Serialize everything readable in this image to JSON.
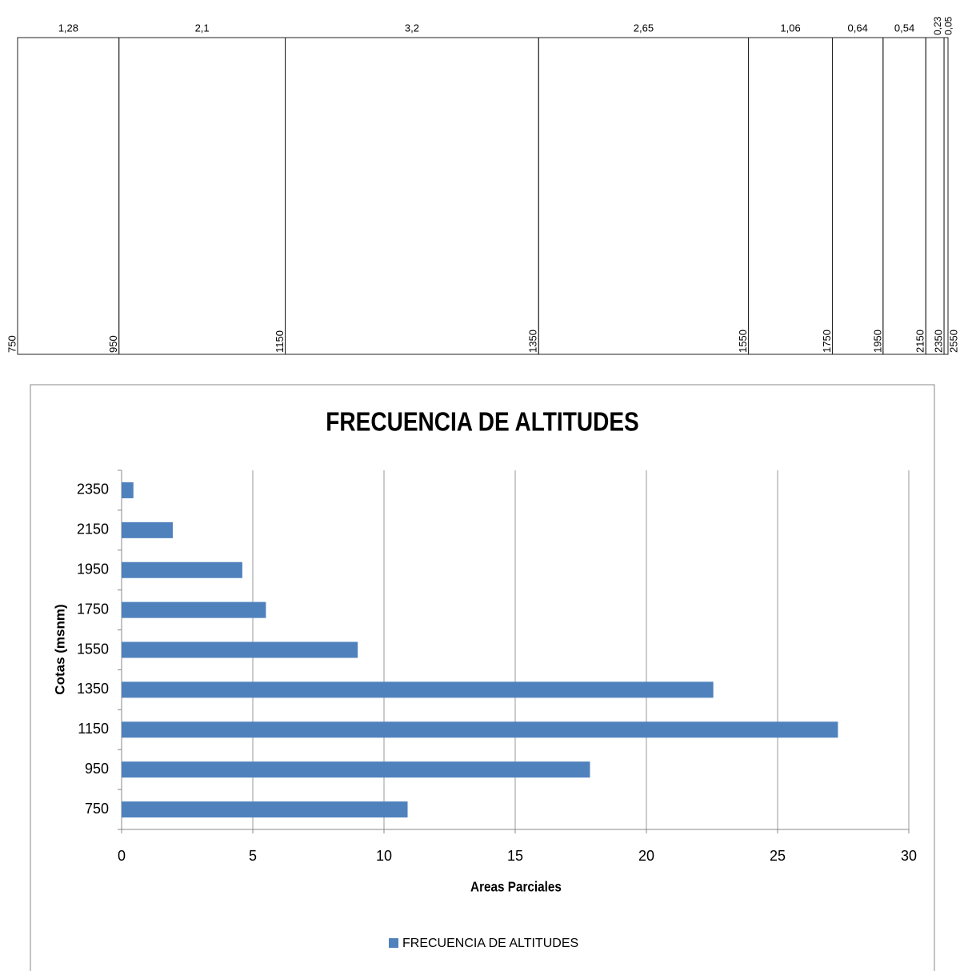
{
  "chart_data": [
    {
      "type": "strip",
      "values": [
        1.28,
        2.1,
        3.2,
        2.65,
        1.06,
        0.64,
        0.54,
        0.23,
        0.05
      ],
      "value_labels": [
        "1,28",
        "2,1",
        "3,2",
        "2,65",
        "1,06",
        "0,64",
        "0,54",
        "0,23",
        "0,05"
      ],
      "boundaries": [
        750,
        950,
        1150,
        1350,
        1550,
        1750,
        1950,
        2150,
        2350,
        2550
      ]
    },
    {
      "type": "hbar",
      "title": "FRECUENCIA DE ALTITUDES",
      "x_label": "Areas Parciales",
      "y_label": "Cotas (msnm)",
      "categories": [
        750,
        950,
        1150,
        1350,
        1550,
        1750,
        1950,
        2150,
        2350
      ],
      "series": [
        {
          "name": "FRECUENCIA DE ALTITUDES",
          "color": "#4f81bd",
          "values": [
            10.9,
            17.85,
            27.3,
            22.55,
            9.0,
            5.5,
            4.6,
            1.95,
            0.45
          ]
        }
      ],
      "xlim": [
        0,
        30
      ],
      "xticks": [
        0,
        5,
        10,
        15,
        20,
        25,
        30
      ],
      "grid": true,
      "legend": "bottom"
    }
  ]
}
